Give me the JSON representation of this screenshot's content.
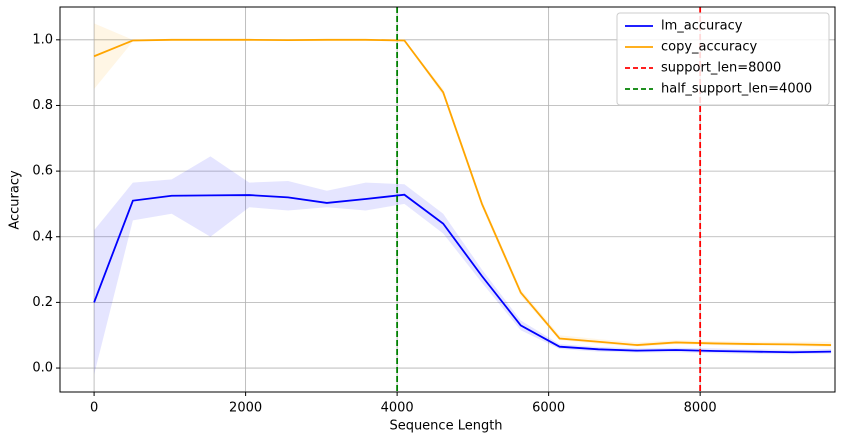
{
  "chart_data": {
    "type": "line",
    "xlabel": "Sequence Length",
    "ylabel": "Accuracy",
    "x": [
      0,
      512,
      1024,
      1536,
      2048,
      2560,
      3072,
      3584,
      4096,
      4608,
      5120,
      5632,
      6144,
      6656,
      7168,
      7680,
      8192,
      8704,
      9216,
      9728
    ],
    "series": [
      {
        "name": "lm_accuracy",
        "color": "#0000ff",
        "values": [
          0.2,
          0.51,
          0.525,
          0.526,
          0.527,
          0.52,
          0.503,
          0.515,
          0.528,
          0.44,
          0.28,
          0.13,
          0.065,
          0.057,
          0.053,
          0.055,
          0.052,
          0.05,
          0.048,
          0.05
        ],
        "lower": [
          -0.02,
          0.45,
          0.47,
          0.4,
          0.49,
          0.48,
          0.49,
          0.48,
          0.5,
          0.41,
          0.26,
          0.115,
          0.058,
          0.05,
          0.047,
          0.048,
          0.045,
          0.043,
          0.042,
          0.044
        ],
        "upper": [
          0.42,
          0.565,
          0.575,
          0.645,
          0.565,
          0.57,
          0.54,
          0.565,
          0.56,
          0.47,
          0.3,
          0.145,
          0.073,
          0.064,
          0.06,
          0.062,
          0.06,
          0.057,
          0.055,
          0.058
        ]
      },
      {
        "name": "copy_accuracy",
        "color": "#ffa500",
        "values": [
          0.95,
          0.998,
          1.0,
          1.0,
          1.0,
          0.999,
          1.0,
          1.0,
          0.998,
          0.84,
          0.5,
          0.23,
          0.09,
          0.08,
          0.07,
          0.078,
          0.075,
          0.073,
          0.072,
          0.07
        ],
        "lower": [
          0.85,
          0.995,
          0.998,
          0.998,
          0.998,
          0.997,
          0.998,
          0.998,
          0.995,
          0.83,
          0.49,
          0.22,
          0.085,
          0.074,
          0.065,
          0.073,
          0.07,
          0.068,
          0.067,
          0.063
        ],
        "upper": [
          1.05,
          1.0,
          1.0,
          1.0,
          1.0,
          1.0,
          1.0,
          1.0,
          1.0,
          0.85,
          0.51,
          0.24,
          0.1,
          0.088,
          0.078,
          0.085,
          0.082,
          0.08,
          0.08,
          0.08
        ]
      }
    ],
    "vlines": [
      {
        "name": "support_len=8000",
        "color": "#ff0000",
        "x": 8000
      },
      {
        "name": "half_support_len=4000",
        "color": "#008000",
        "x": 4000
      }
    ],
    "xlim": [
      -450,
      9780
    ],
    "ylim": [
      -0.073,
      1.1
    ],
    "xticks": [
      0,
      2000,
      4000,
      6000,
      8000
    ],
    "yticks": [
      {
        "value": 0,
        "label": "0.0"
      },
      {
        "value": 0.2,
        "label": "0.2"
      },
      {
        "value": 0.4,
        "label": "0.4"
      },
      {
        "value": 0.6,
        "label": "0.6"
      },
      {
        "value": 0.8,
        "label": "0.8"
      },
      {
        "value": 1,
        "label": "1.0"
      }
    ],
    "grid": true,
    "legend": "upper right"
  }
}
